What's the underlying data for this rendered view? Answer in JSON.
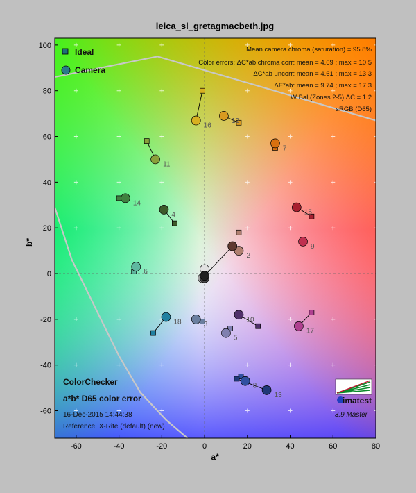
{
  "chart_data": {
    "type": "scatter",
    "title": "leica_sl_gretagmacbeth.jpg",
    "xlabel": "a*",
    "ylabel": "b*",
    "xlim": [
      -70,
      80
    ],
    "ylim": [
      -72,
      103
    ],
    "xticks": [
      -60,
      -40,
      -20,
      0,
      20,
      40,
      60,
      80
    ],
    "yticks": [
      -60,
      -40,
      -20,
      0,
      20,
      40,
      60,
      80,
      100
    ],
    "grid": true,
    "legend": {
      "position": "top-left",
      "entries": [
        "Ideal",
        "Camera"
      ]
    },
    "stats": [
      "Mean camera chroma (saturation) = 95.8%",
      "Color errors: ΔC*ab chroma corr:  mean = 4.69 ;  max = 10.5",
      "ΔC*ab uncorr:  mean = 4.61 ;  max = 13.3",
      "ΔE*ab:  mean = 9.74 ;  max = 17.3",
      "W Bal (Zones 2-5) ΔC = 1.2",
      "sRGB (D65)"
    ],
    "footer": {
      "chart_name": "ColorChecker",
      "subtitle": "a*b* D65 color error",
      "date": "16-Dec-2015 14:44:38",
      "reference": "Reference: X-Rite (default) (new)"
    },
    "brand": {
      "logo_text": "imatest",
      "version": "3.9  Master"
    },
    "gamut_upper": [
      [
        -70,
        86
      ],
      [
        -22,
        95
      ],
      [
        80,
        67
      ]
    ],
    "gamut_lower": [
      [
        -70,
        29
      ],
      [
        -62,
        6
      ],
      [
        -50,
        -17
      ],
      [
        -40,
        -36
      ],
      [
        -30,
        -52
      ],
      [
        -18,
        -64
      ],
      [
        -8,
        -72
      ]
    ],
    "patches": [
      {
        "id": "1",
        "ideal": [
          0,
          0
        ],
        "camera": [
          0,
          2
        ],
        "color": "#e0e0e0"
      },
      {
        "id": "2",
        "ideal": [
          16,
          18
        ],
        "camera": [
          16,
          10
        ],
        "color": "#b08070"
      },
      {
        "id": "3",
        "ideal": [
          -1,
          -21
        ],
        "camera": [
          -4,
          -20
        ],
        "color": "#6a7fa0"
      },
      {
        "id": "4",
        "ideal": [
          -14,
          22
        ],
        "camera": [
          -19,
          28
        ],
        "color": "#3d5a2a"
      },
      {
        "id": "5",
        "ideal": [
          12,
          -24
        ],
        "camera": [
          10,
          -26
        ],
        "color": "#8080b0"
      },
      {
        "id": "6",
        "ideal": [
          -33,
          1
        ],
        "camera": [
          -32,
          3
        ],
        "color": "#5fb8a0"
      },
      {
        "id": "7",
        "ideal": [
          33,
          55
        ],
        "camera": [
          33,
          57
        ],
        "color": "#d87010"
      },
      {
        "id": "8",
        "ideal": [
          17,
          -45
        ],
        "camera": [
          19,
          -47
        ],
        "color": "#3050a0"
      },
      {
        "id": "9",
        "ideal": [
          46,
          14
        ],
        "camera": [
          46,
          14
        ],
        "color": "#c03050"
      },
      {
        "id": "10",
        "ideal": [
          25,
          -23
        ],
        "camera": [
          16,
          -18
        ],
        "color": "#50306a"
      },
      {
        "id": "11",
        "ideal": [
          -27,
          58
        ],
        "camera": [
          -23,
          50
        ],
        "color": "#8aa03a"
      },
      {
        "id": "12",
        "ideal": [
          16,
          66
        ],
        "camera": [
          9,
          69
        ],
        "color": "#d89a20"
      },
      {
        "id": "13",
        "ideal": [
          15,
          -46
        ],
        "camera": [
          29,
          -51
        ],
        "color": "#203878"
      },
      {
        "id": "14",
        "ideal": [
          -40,
          33
        ],
        "camera": [
          -37,
          33
        ],
        "color": "#408040"
      },
      {
        "id": "15",
        "ideal": [
          50,
          25
        ],
        "camera": [
          43,
          29
        ],
        "color": "#a82030"
      },
      {
        "id": "16",
        "ideal": [
          -1,
          80
        ],
        "camera": [
          -4,
          67
        ],
        "color": "#d8b020"
      },
      {
        "id": "17",
        "ideal": [
          50,
          -17
        ],
        "camera": [
          44,
          -23
        ],
        "color": "#b04090"
      },
      {
        "id": "18",
        "ideal": [
          -24,
          -26
        ],
        "camera": [
          -18,
          -19
        ],
        "color": "#2080a0"
      },
      {
        "id": "19",
        "ideal": [
          0,
          -1
        ],
        "camera": [
          0,
          -2
        ],
        "color": "#c8c8c8"
      },
      {
        "id": "20",
        "ideal": [
          0,
          -1
        ],
        "camera": [
          -1,
          -2
        ],
        "color": "#a0a0a0"
      },
      {
        "id": "21",
        "ideal": [
          0,
          -1
        ],
        "camera": [
          0,
          -1
        ],
        "color": "#787878"
      },
      {
        "id": "22",
        "ideal": [
          0,
          -1
        ],
        "camera": [
          13,
          12
        ],
        "color": "#603a30"
      },
      {
        "id": "23",
        "ideal": [
          0,
          -1
        ],
        "camera": [
          0,
          -2
        ],
        "color": "#484848"
      },
      {
        "id": "24",
        "ideal": [
          0,
          -1
        ],
        "camera": [
          0,
          -1
        ],
        "color": "#202020"
      }
    ],
    "labeled_patches": [
      "2",
      "3",
      "4",
      "5",
      "6",
      "7",
      "8",
      "9",
      "10",
      "11",
      "12",
      "13",
      "14",
      "15",
      "16",
      "17",
      "18"
    ]
  }
}
